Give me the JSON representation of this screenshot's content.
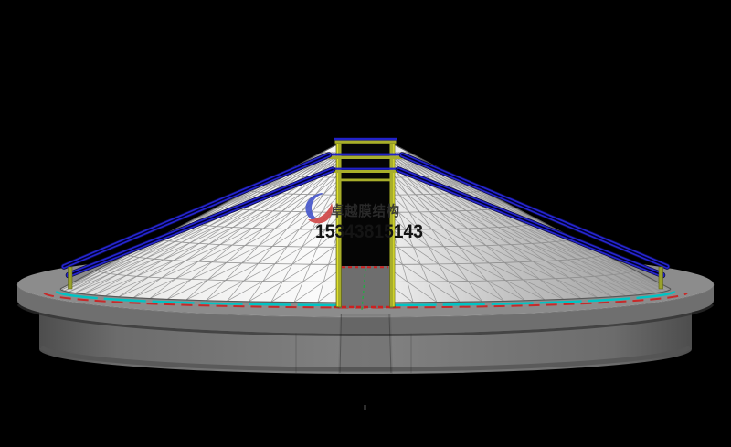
{
  "viewport": {
    "background": "#000000",
    "kind": "3d-structural-model-render"
  },
  "watermark": {
    "company": "卓越膜结构",
    "phone": "15343815143"
  },
  "model": {
    "membrane_fill_light": "#f5f5f5",
    "membrane_fill_dark": "#9b9b9b",
    "mesh_line": "#929292",
    "base_top": "#8c8c8c",
    "base_front": "#6f6f6f",
    "cylinder_front": "#808080"
  },
  "colors": {
    "cable": "#2525cf",
    "cable_dark": "#000030",
    "tower": "#a8ae2a",
    "tower_highlight": "#e6e62e",
    "ring_inner": "#00c4c4",
    "ring_outer": "#c62a2a",
    "centerline": "#22aa44",
    "door_marker": "#cc2020"
  }
}
